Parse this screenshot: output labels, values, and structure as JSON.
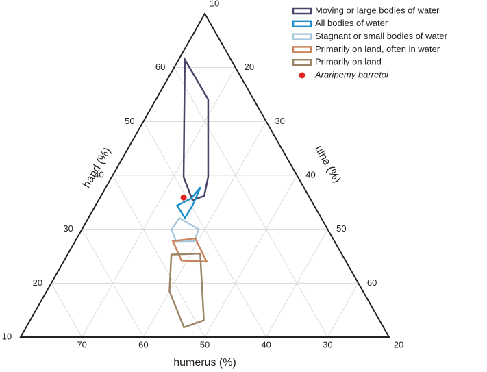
{
  "chart_data": {
    "type": "ternary",
    "axes": {
      "hand": {
        "label": "hand (%)",
        "lim": [
          10,
          70
        ],
        "ticks": [
          20,
          30,
          40,
          50,
          60
        ]
      },
      "ulna": {
        "label": "ulna (%)",
        "lim": [
          10,
          70
        ],
        "ticks": [
          20,
          30,
          40,
          50,
          60
        ]
      },
      "humerus": {
        "label": "humerus (%)",
        "lim": [
          20,
          80
        ],
        "ticks": [
          70,
          60,
          50,
          40,
          30
        ]
      }
    },
    "grid": true,
    "legend": "upper right",
    "series": [
      {
        "name": "Moving or large bodies of water",
        "color": "#4a4468",
        "marker": "outline",
        "hand": [
          61.5,
          54.1,
          39.7,
          36.2,
          35.4,
          39.7
        ],
        "ulna": [
          11.0,
          18.5,
          25.7,
          26.8,
          25.3,
          21.7
        ],
        "humerus": [
          27.5,
          27.4,
          34.6,
          37.0,
          39.3,
          38.6
        ]
      },
      {
        "name": "All bodies of water",
        "color": "#1e8fc8",
        "marker": "outline",
        "hand": [
          37.8,
          35.7,
          34.4,
          32.1,
          34.4
        ],
        "ulna": [
          25.4,
          24.9,
          23.3,
          25.7,
          25.8
        ],
        "humerus": [
          36.8,
          39.4,
          42.3,
          42.2,
          39.8
        ]
      },
      {
        "name": "Stagnant or small bodies of water",
        "color": "#a9c8dc",
        "marker": "outline",
        "hand": [
          32.1,
          30.0,
          27.8,
          27.8,
          30.0
        ],
        "ulna": [
          24.8,
          29.0,
          29.4,
          26.4,
          24.6
        ],
        "humerus": [
          43.1,
          41.0,
          42.8,
          45.8,
          45.4
        ]
      },
      {
        "name": "Primarily on land, often in water",
        "color": "#c8845a",
        "marker": "outline",
        "hand": [
          27.8,
          28.3,
          24.0,
          24.2
        ],
        "ulna": [
          25.9,
          29.3,
          33.3,
          29.1
        ],
        "humerus": [
          46.3,
          42.4,
          42.7,
          46.7
        ]
      },
      {
        "name": "Primarily on land",
        "color": "#9b8566",
        "marker": "outline",
        "hand": [
          25.3,
          25.5,
          13.1,
          11.8,
          18.5
        ],
        "ulna": [
          26.9,
          31.5,
          38.3,
          35.7,
          30.0
        ],
        "humerus": [
          47.8,
          43.0,
          48.6,
          52.5,
          51.5
        ]
      },
      {
        "name": "Araripemy barretoi",
        "color": "#e52421",
        "marker": "dot",
        "name_style": "italic",
        "hand": [
          35.9
        ],
        "ulna": [
          23.6
        ],
        "humerus": [
          40.5
        ]
      }
    ]
  }
}
